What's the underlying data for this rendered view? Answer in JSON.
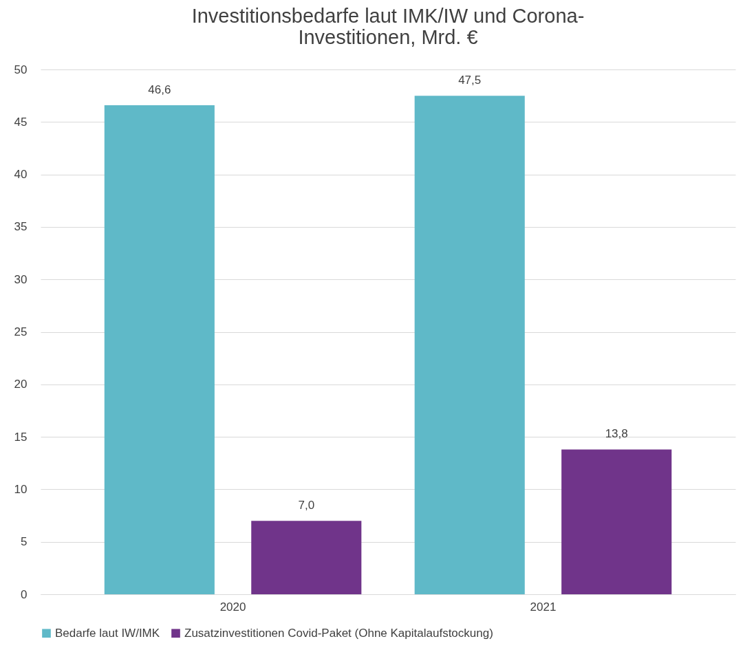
{
  "chart_data": {
    "type": "bar",
    "title": "Investitionsbedarfe laut IMK/IW und Corona-Investitionen, Mrd. €",
    "categories": [
      "2020",
      "2021"
    ],
    "series": [
      {
        "name": "Bedarfe laut IW/IMK",
        "color": "#5fb9c8",
        "values": [
          46.6,
          47.5
        ],
        "value_labels": [
          "46,6",
          "47,5"
        ]
      },
      {
        "name": "Zusatzinvestitionen Covid-Paket (Ohne Kapitalaufstockung)",
        "color": "#70348a",
        "values": [
          7.0,
          13.8
        ],
        "value_labels": [
          "7,0",
          "13,8"
        ]
      }
    ],
    "ylim": [
      0,
      50
    ],
    "yticks": [
      0,
      5,
      10,
      15,
      20,
      25,
      30,
      35,
      40,
      45,
      50
    ],
    "grid": "y",
    "legend": "bottom"
  }
}
